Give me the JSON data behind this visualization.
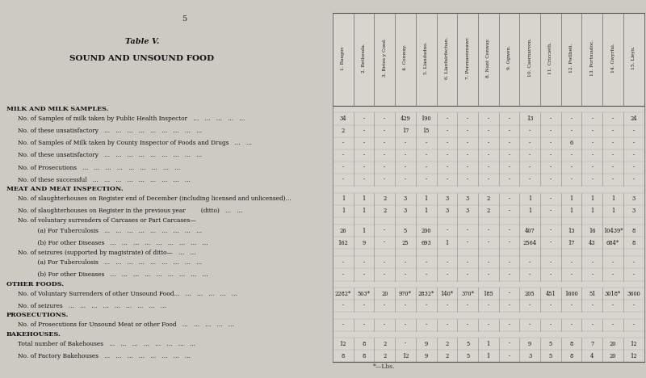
{
  "page_num": "5",
  "title1": "Table V.",
  "title2": "SOUND AND UNSOUND FOOD",
  "bg_color": "#cccac3",
  "table_bg": "#d8d5ce",
  "columns": [
    "1. Bangor.",
    "2. Bethesda.",
    "3. Betes y Coed.",
    "4. Conway.",
    "5. Llandudno.",
    "6. Llanfairfechan.",
    "7. Penmaenmawr.",
    "8. Nant Conway.",
    "9. Ogwen.",
    "10. Caernarvon.",
    "11. Criccieth.",
    "12. Pwllheli.",
    "13. Portmadoc.",
    "14. Gwyrfai.",
    "15. Lleyn."
  ],
  "row_labels": [
    "MILK AND MILK SAMPLES.",
    "No. of Samples of milk taken by Public Health Inspector   ...   ...   ...   ...   ...",
    "No. of these unsatisfactory   ...   ...   ...   ...   ...   ...   ...   ...   ...",
    "No. of Samples of Milk taken by County Inspector of Foods and Drugs   ...   ...",
    "No. of these unsatisfactory   ...   ...   ...   ...   ...   ...   ...   ...   ...",
    "No. of Prosecutions   ...   ...   ...   ...   ...   ...   ...   ...   ...",
    "No. of these successful   ...   ...   ...   ...   ...   ...   ...   ...   ...",
    "MEAT AND MEAT INSPECTION.",
    "No. of slaughterhouses on Register end of December (including licensed and unlicensed)...",
    "No. of slaughterhouses on Register in the previous year        (ditto)   ...   ...",
    "No. of voluntary surrenders of Carcases or Part Carcases—",
    "    (a) For Tuberculosis   ...   ...   ...   ...   ...   ...   ...   ...   ...",
    "    (b) For other Diseases   ...   ...   ...   ...   ...   ...   ...   ...   ...",
    "No. of seizures (supported by magistrate) of ditto—   ...   ...",
    "    (a) For Tuberculosis   ...   ...   ...   ...   ...   ...   ...   ...   ...",
    "    (b) For other Diseases   ...   ...   ...   ...   ...   ...   ...   ...   ...",
    "OTHER FOODS.",
    "No. of Voluntary Surrenders of other Unsound Food...   ...   ...   ...   ...   ...",
    "No. of seizures   ...   ...   ...   ...   ...   ...   ...   ...   ...",
    "PROSECUTIONS.",
    "No. of Prosecutions for Unsound Meat or other Food   ...   ...   ...   ...   ...",
    "BAKEHOUSES.",
    "Total number of Bakehouses   ...   ...   ...   ...   ...   ...   ...   ...",
    "No. of Factory Bakehouses   ...   ...   ...   ...   ...   ...   ...   ..."
  ],
  "label_indent": [
    0,
    1,
    1,
    1,
    1,
    1,
    1,
    0,
    1,
    1,
    1,
    2,
    2,
    1,
    2,
    2,
    0,
    1,
    1,
    0,
    1,
    0,
    1,
    1
  ],
  "label_bold": [
    1,
    0,
    0,
    0,
    0,
    0,
    0,
    1,
    0,
    0,
    0,
    0,
    0,
    0,
    0,
    0,
    1,
    0,
    0,
    1,
    0,
    1,
    0,
    0
  ],
  "data": [
    [
      "",
      "",
      "",
      "",
      "",
      "",
      "",
      "",
      "",
      "",
      "",
      "",
      "",
      "",
      ""
    ],
    [
      "34",
      "-",
      "-",
      "429",
      "190",
      "-",
      "-",
      "-",
      "-",
      "13",
      "-",
      "-",
      "-",
      "-",
      "24"
    ],
    [
      "2",
      "-",
      "-",
      "17",
      "15",
      "-",
      "-",
      "-",
      "-",
      "-",
      "-",
      "-",
      "-",
      "-",
      "-"
    ],
    [
      "-",
      "-",
      "-",
      "-",
      "-",
      "-",
      "-",
      "-",
      "-",
      "-",
      "-",
      "6",
      "-",
      "-",
      "-"
    ],
    [
      "-",
      "-",
      "-",
      "-",
      "-",
      "-",
      "-",
      "-",
      "-",
      "-",
      "-",
      "-",
      "-",
      "-",
      "-"
    ],
    [
      "-",
      "-",
      "-",
      "-",
      "-",
      "-",
      "-",
      "-",
      "-",
      "-",
      "-",
      "-",
      "-",
      "-",
      "-"
    ],
    [
      "-",
      "-",
      "-",
      "-",
      "-",
      "-",
      "-",
      "-",
      "-",
      "-",
      "-",
      "-",
      "-",
      "-",
      "-"
    ],
    [
      "",
      "",
      "",
      "",
      "",
      "",
      "",
      "",
      "",
      "",
      "",
      "",
      "",
      "",
      ""
    ],
    [
      "1",
      "1",
      "2",
      "3",
      "1",
      "3",
      "3",
      "2",
      "-",
      "1",
      "-",
      "1",
      "1",
      "1",
      "3"
    ],
    [
      "1",
      "1",
      "2",
      "3",
      "1",
      "3",
      "3",
      "2",
      "-",
      "1",
      "-",
      "1",
      "1",
      "1",
      "3"
    ],
    [
      "",
      "",
      "",
      "",
      "",
      "",
      "",
      "",
      "",
      "",
      "",
      "",
      "",
      "",
      ""
    ],
    [
      "26",
      "1",
      "-",
      "5",
      "200",
      "-",
      "-",
      "-",
      "-",
      "407",
      "-",
      "13",
      "16",
      "10439*",
      "8"
    ],
    [
      "162",
      "9",
      "-",
      "25",
      "693",
      "1",
      "-",
      "-",
      "-",
      "2564",
      "-",
      "17",
      "43",
      "684*",
      "8"
    ],
    [
      "",
      "",
      "",
      "",
      "",
      "",
      "",
      "",
      "",
      "",
      "",
      "",
      "",
      "",
      ""
    ],
    [
      "-",
      "-",
      "-",
      "-",
      "-",
      "-",
      "-",
      "-",
      "-",
      "-",
      "-",
      "-",
      "-",
      "-",
      "-"
    ],
    [
      "-",
      "-",
      "-",
      "-",
      "-",
      "-",
      "-",
      "-",
      "-",
      "-",
      "-",
      "-",
      "-",
      "-",
      "-"
    ],
    [
      "",
      "",
      "",
      "",
      "",
      "",
      "",
      "",
      "",
      "",
      "",
      "",
      "",
      "",
      ""
    ],
    [
      "2282*",
      "503*",
      "20",
      "970*",
      "2832*",
      "140*",
      "370*",
      "185",
      "-",
      "205",
      "451",
      "1600",
      "51",
      "3018*",
      "3600"
    ],
    [
      "-",
      "-",
      "-",
      "-",
      "-",
      "-",
      "-",
      "-",
      "-",
      "-",
      "-",
      "-",
      "-",
      "-",
      "-"
    ],
    [
      "",
      "",
      "",
      "",
      "",
      "",
      "",
      "",
      "",
      "",
      "",
      "",
      "",
      "",
      ""
    ],
    [
      "-",
      "-",
      "-",
      "-",
      "-",
      "-",
      "-",
      "-",
      "-",
      "-",
      "-",
      "-",
      "-",
      "-",
      "-"
    ],
    [
      "",
      "",
      "",
      "",
      "",
      "",
      "",
      "",
      "",
      "",
      "",
      "",
      "",
      "",
      ""
    ],
    [
      "12",
      "8",
      "2",
      "-",
      "9",
      "2",
      "5",
      "1",
      "-",
      "9",
      "5",
      "8",
      "7",
      "20",
      "12"
    ],
    [
      "8",
      "8",
      "2",
      "12",
      "9",
      "2",
      "5",
      "1",
      "-",
      "3",
      "5",
      "8",
      "4",
      "20",
      "12"
    ]
  ],
  "footnote": "*—Lbs."
}
